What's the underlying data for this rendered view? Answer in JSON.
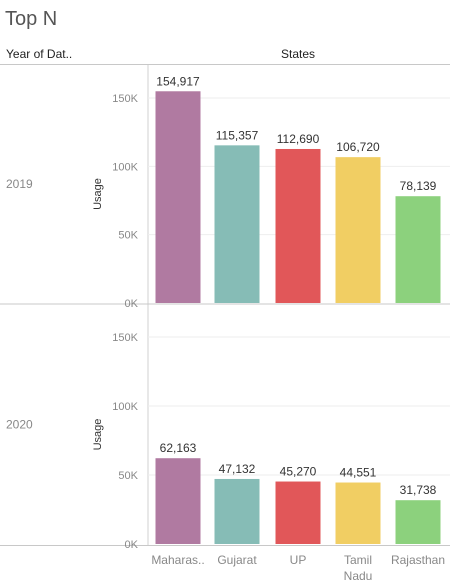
{
  "title": "Top N",
  "row_header": "Year of Dat..",
  "column_header": "States",
  "chart_data": {
    "type": "bar",
    "categories": [
      "Maharas..",
      "Gujarat",
      "UP",
      "Tamil Nadu",
      "Rajasthan"
    ],
    "colors": [
      "#b07aa1",
      "#86bcb6",
      "#e15759",
      "#f1ce63",
      "#8cd17d"
    ],
    "ylabel": "Usage",
    "ylim": [
      0,
      170000
    ],
    "yticks": [
      0,
      50000,
      100000,
      150000
    ],
    "ytick_labels": [
      "0K",
      "50K",
      "100K",
      "150K"
    ],
    "panels": [
      {
        "year": "2019",
        "values": [
          154917,
          115357,
          112690,
          106720,
          78139
        ],
        "labels": [
          "154,917",
          "115,357",
          "112,690",
          "106,720",
          "78,139"
        ]
      },
      {
        "year": "2020",
        "values": [
          62163,
          47132,
          45270,
          44551,
          31738
        ],
        "labels": [
          "62,163",
          "47,132",
          "45,270",
          "44,551",
          "31,738"
        ]
      }
    ]
  }
}
